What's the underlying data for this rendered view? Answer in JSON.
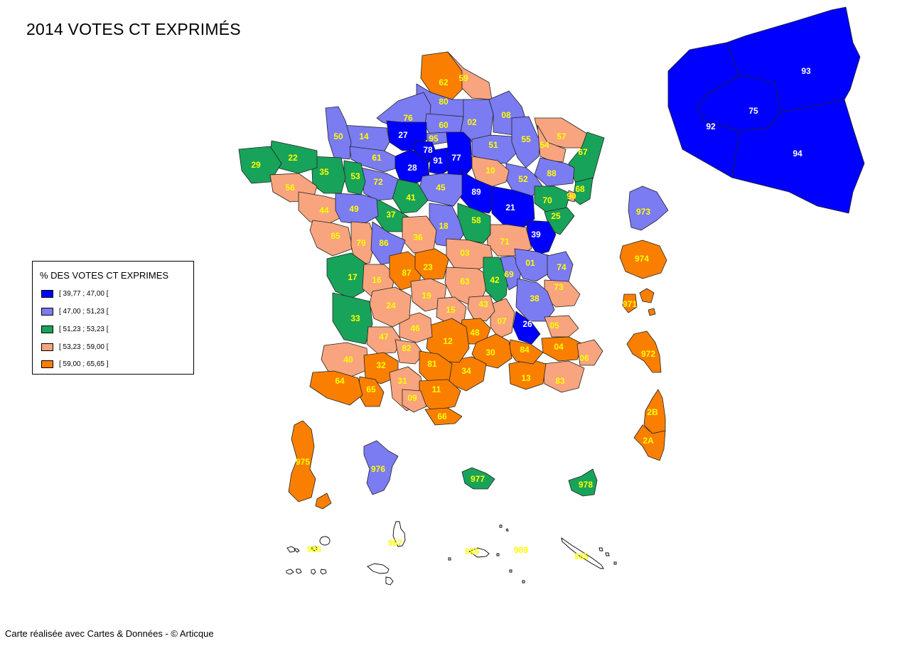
{
  "title": "2014 VOTES CT EXPRIMÉS",
  "footer": "Carte réalisée avec Cartes & Données - © Articque",
  "legend": {
    "title": "% DES VOTES CT EXPRIMES",
    "classes": [
      {
        "label": "[ 39,77 ; 47,00 [",
        "color": "#0000ff"
      },
      {
        "label": "[ 47,00 ; 51,23 [",
        "color": "#7b7bf2"
      },
      {
        "label": "[ 51,23 ; 53,23 [",
        "color": "#18a35a"
      },
      {
        "label": "[ 53,23 ; 59,00 [",
        "color": "#f8a47e"
      },
      {
        "label": "[ 59,00 ; 65,65 ]",
        "color": "#fa7f00"
      }
    ]
  },
  "label_colors": {
    "dark": "#ffffff",
    "light": "#ffff00"
  },
  "departments": [
    {
      "code": "62",
      "cls": 4
    },
    {
      "code": "59",
      "cls": 3
    },
    {
      "code": "80",
      "cls": 1
    },
    {
      "code": "76",
      "cls": 1
    },
    {
      "code": "02",
      "cls": 1
    },
    {
      "code": "08",
      "cls": 1
    },
    {
      "code": "60",
      "cls": 1
    },
    {
      "code": "95",
      "cls": 1
    },
    {
      "code": "27",
      "cls": 0
    },
    {
      "code": "14",
      "cls": 1
    },
    {
      "code": "50",
      "cls": 1
    },
    {
      "code": "61",
      "cls": 1
    },
    {
      "code": "78",
      "cls": 0
    },
    {
      "code": "91",
      "cls": 0
    },
    {
      "code": "77",
      "cls": 0
    },
    {
      "code": "28",
      "cls": 0
    },
    {
      "code": "51",
      "cls": 1
    },
    {
      "code": "55",
      "cls": 1
    },
    {
      "code": "57",
      "cls": 3
    },
    {
      "code": "54",
      "cls": 3
    },
    {
      "code": "67",
      "cls": 2
    },
    {
      "code": "68",
      "cls": 2
    },
    {
      "code": "88",
      "cls": 1
    },
    {
      "code": "52",
      "cls": 1
    },
    {
      "code": "10",
      "cls": 3
    },
    {
      "code": "89",
      "cls": 0
    },
    {
      "code": "21",
      "cls": 0
    },
    {
      "code": "70",
      "cls": 2
    },
    {
      "code": "25",
      "cls": 2
    },
    {
      "code": "90",
      "cls": 3
    },
    {
      "code": "39",
      "cls": 0
    },
    {
      "code": "71",
      "cls": 3
    },
    {
      "code": "58",
      "cls": 2
    },
    {
      "code": "45",
      "cls": 1
    },
    {
      "code": "41",
      "cls": 2
    },
    {
      "code": "18",
      "cls": 1
    },
    {
      "code": "37",
      "cls": 2
    },
    {
      "code": "36",
      "cls": 3
    },
    {
      "code": "72",
      "cls": 1
    },
    {
      "code": "53",
      "cls": 2
    },
    {
      "code": "35",
      "cls": 2
    },
    {
      "code": "22",
      "cls": 2
    },
    {
      "code": "29",
      "cls": 2
    },
    {
      "code": "56",
      "cls": 3
    },
    {
      "code": "44",
      "cls": 3
    },
    {
      "code": "49",
      "cls": 1
    },
    {
      "code": "85",
      "cls": 3
    },
    {
      "code": "79",
      "cls": 3
    },
    {
      "code": "86",
      "cls": 1
    },
    {
      "code": "17",
      "cls": 2
    },
    {
      "code": "16",
      "cls": 3
    },
    {
      "code": "87",
      "cls": 4
    },
    {
      "code": "23",
      "cls": 4
    },
    {
      "code": "03",
      "cls": 3
    },
    {
      "code": "63",
      "cls": 3
    },
    {
      "code": "19",
      "cls": 3
    },
    {
      "code": "42",
      "cls": 2
    },
    {
      "code": "69",
      "cls": 1
    },
    {
      "code": "01",
      "cls": 1
    },
    {
      "code": "74",
      "cls": 1
    },
    {
      "code": "73",
      "cls": 3
    },
    {
      "code": "38",
      "cls": 1
    },
    {
      "code": "26",
      "cls": 0
    },
    {
      "code": "05",
      "cls": 3
    },
    {
      "code": "04",
      "cls": 4
    },
    {
      "code": "06",
      "cls": 3
    },
    {
      "code": "83",
      "cls": 3
    },
    {
      "code": "13",
      "cls": 4
    },
    {
      "code": "84",
      "cls": 4
    },
    {
      "code": "07",
      "cls": 3
    },
    {
      "code": "43",
      "cls": 3
    },
    {
      "code": "15",
      "cls": 3
    },
    {
      "code": "48",
      "cls": 4
    },
    {
      "code": "30",
      "cls": 4
    },
    {
      "code": "34",
      "cls": 4
    },
    {
      "code": "12",
      "cls": 4
    },
    {
      "code": "46",
      "cls": 3
    },
    {
      "code": "24",
      "cls": 3
    },
    {
      "code": "33",
      "cls": 2
    },
    {
      "code": "47",
      "cls": 3
    },
    {
      "code": "40",
      "cls": 3
    },
    {
      "code": "82",
      "cls": 3
    },
    {
      "code": "32",
      "cls": 4
    },
    {
      "code": "81",
      "cls": 4
    },
    {
      "code": "31",
      "cls": 3
    },
    {
      "code": "11",
      "cls": 4
    },
    {
      "code": "66",
      "cls": 4
    },
    {
      "code": "09",
      "cls": 3
    },
    {
      "code": "65",
      "cls": 4
    },
    {
      "code": "64",
      "cls": 4
    },
    {
      "code": "93",
      "cls": 0
    },
    {
      "code": "75",
      "cls": 0
    },
    {
      "code": "92",
      "cls": 0
    },
    {
      "code": "94",
      "cls": 0
    },
    {
      "code": "973",
      "cls": 1
    },
    {
      "code": "974",
      "cls": 4
    },
    {
      "code": "971",
      "cls": 4
    },
    {
      "code": "972",
      "cls": 4
    },
    {
      "code": "2B",
      "cls": 4
    },
    {
      "code": "2A",
      "cls": 4
    },
    {
      "code": "975",
      "cls": 4
    },
    {
      "code": "976",
      "cls": 1
    },
    {
      "code": "977",
      "cls": 2
    },
    {
      "code": "978",
      "cls": 2
    },
    {
      "code": "986",
      "cls": -1
    },
    {
      "code": "987",
      "cls": -1
    },
    {
      "code": "988",
      "cls": -1
    },
    {
      "code": "989",
      "cls": -1
    },
    {
      "code": "985",
      "cls": -1
    }
  ]
}
